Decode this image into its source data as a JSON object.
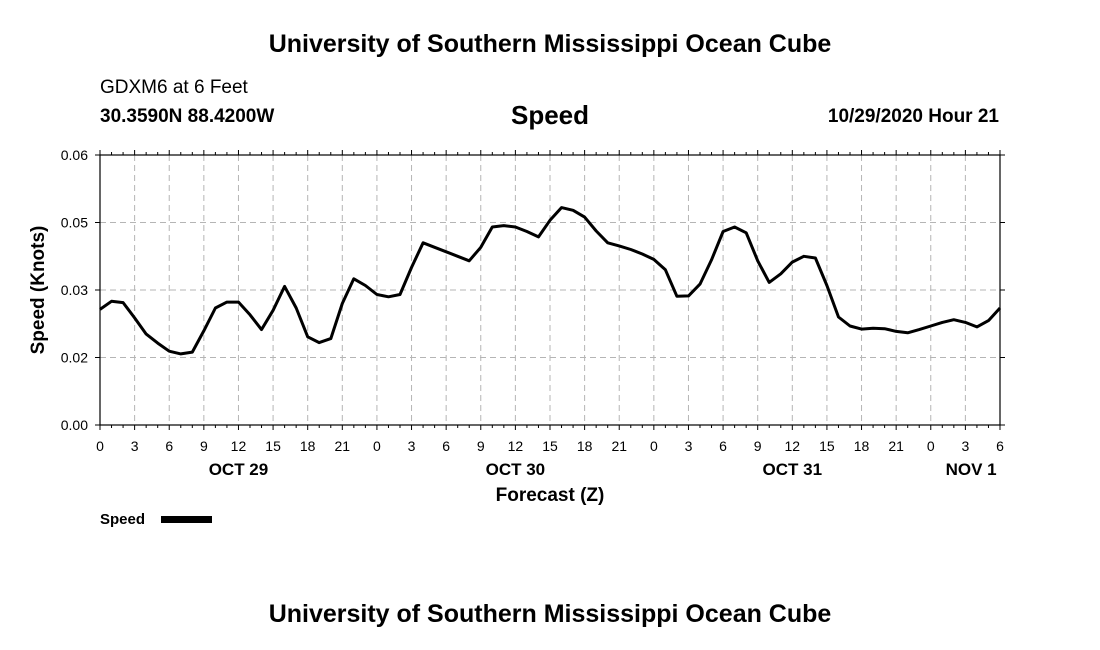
{
  "header": {
    "title": "University of Southern Mississippi Ocean Cube",
    "station": "GDXM6 at 6 Feet",
    "coordinates": "30.3590N 88.4200W",
    "parameter": "Speed",
    "timestamp": "10/29/2020 Hour 21"
  },
  "footer": {
    "title": "University of Southern Mississippi Ocean Cube"
  },
  "chart_data": {
    "type": "line",
    "title": "Speed",
    "xlabel": "Forecast (Z)",
    "ylabel": "Speed (Knots)",
    "ylim": [
      0.0,
      0.06
    ],
    "yticks": [
      "0.00",
      "0.02",
      "0.03",
      "0.05",
      "0.06"
    ],
    "xlim_hours": [
      0,
      78
    ],
    "xtick_labels": [
      "0",
      "3",
      "6",
      "9",
      "12",
      "15",
      "18",
      "21",
      "0",
      "3",
      "6",
      "9",
      "12",
      "15",
      "18",
      "21",
      "0",
      "3",
      "6",
      "9",
      "12",
      "15",
      "18",
      "21",
      "0",
      "3",
      "6"
    ],
    "date_labels": [
      {
        "label": "OCT 29",
        "hour": 12
      },
      {
        "label": "OCT 30",
        "hour": 36
      },
      {
        "label": "OCT 31",
        "hour": 60
      },
      {
        "label": "NOV 1",
        "hour": 75.5
      }
    ],
    "grid": true,
    "legend": {
      "label": "Speed",
      "position": "bottom-left"
    },
    "series": [
      {
        "name": "Speed",
        "color": "#000000",
        "x": [
          0,
          1,
          2,
          3,
          4,
          5,
          6,
          7,
          8,
          9,
          10,
          11,
          12,
          13,
          14,
          15,
          16,
          17,
          18,
          19,
          20,
          21,
          22,
          23,
          24,
          25,
          26,
          27,
          28,
          29,
          30,
          31,
          32,
          33,
          34,
          35,
          36,
          37,
          38,
          39,
          40,
          41,
          42,
          43,
          44,
          45,
          46,
          47,
          48,
          49,
          50,
          51,
          52,
          53,
          54,
          55,
          56,
          57,
          58,
          59,
          60,
          61,
          62,
          63,
          64,
          65,
          66,
          67,
          68,
          69,
          70,
          71,
          72,
          73,
          74,
          75,
          76,
          77,
          78
        ],
        "values": [
          0.0257,
          0.0275,
          0.0272,
          0.0238,
          0.0202,
          0.0182,
          0.0164,
          0.0158,
          0.0162,
          0.0209,
          0.026,
          0.0273,
          0.0273,
          0.0245,
          0.0212,
          0.0255,
          0.0308,
          0.026,
          0.0196,
          0.0183,
          0.0192,
          0.027,
          0.0325,
          0.031,
          0.029,
          0.0285,
          0.029,
          0.035,
          0.0405,
          0.0395,
          0.0385,
          0.0375,
          0.0365,
          0.0395,
          0.044,
          0.0443,
          0.044,
          0.043,
          0.0418,
          0.0455,
          0.0483,
          0.0477,
          0.0462,
          0.0431,
          0.0405,
          0.0398,
          0.039,
          0.038,
          0.0368,
          0.0345,
          0.0286,
          0.0287,
          0.0313,
          0.0367,
          0.043,
          0.044,
          0.0427,
          0.0365,
          0.0317,
          0.0336,
          0.0362,
          0.0375,
          0.0371,
          0.031,
          0.024,
          0.022,
          0.0213,
          0.0215,
          0.0214,
          0.0208,
          0.0205,
          0.0212,
          0.022,
          0.0228,
          0.0234,
          0.0228,
          0.0218,
          0.0232,
          0.026
        ]
      }
    ]
  }
}
